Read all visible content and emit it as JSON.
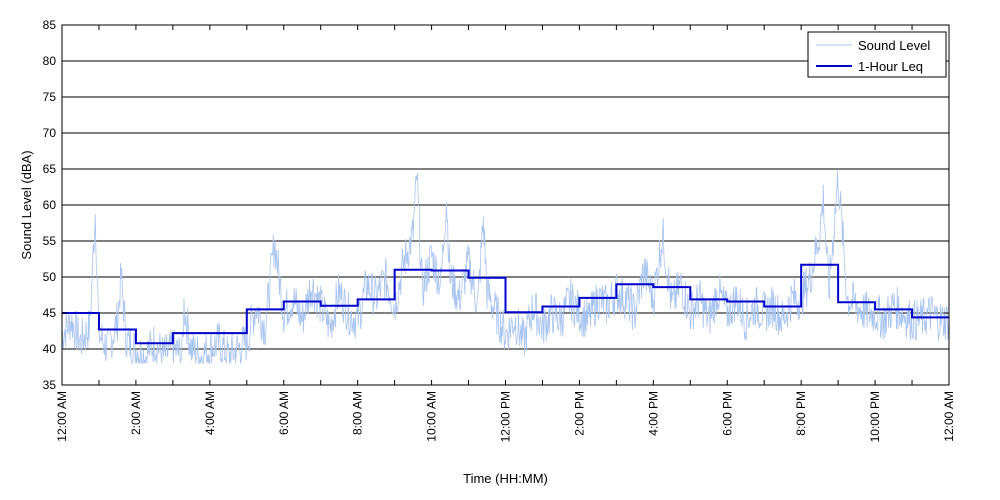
{
  "chart_data": {
    "type": "line",
    "xlabel": "Time (HH:MM)",
    "ylabel": "Sound Level (dBA)",
    "x_range_hours": [
      0,
      24
    ],
    "ylim": [
      35,
      85
    ],
    "y_ticks": [
      35,
      40,
      45,
      50,
      55,
      60,
      65,
      70,
      75,
      80,
      85
    ],
    "x_ticks": [
      {
        "hour": 0,
        "label": "12:00 AM"
      },
      {
        "hour": 2,
        "label": "2:00 AM"
      },
      {
        "hour": 4,
        "label": "4:00 AM"
      },
      {
        "hour": 6,
        "label": "6:00 AM"
      },
      {
        "hour": 8,
        "label": "8:00 AM"
      },
      {
        "hour": 10,
        "label": "10:00 AM"
      },
      {
        "hour": 12,
        "label": "12:00 PM"
      },
      {
        "hour": 14,
        "label": "2:00 PM"
      },
      {
        "hour": 16,
        "label": "4:00 PM"
      },
      {
        "hour": 18,
        "label": "6:00 PM"
      },
      {
        "hour": 20,
        "label": "8:00 PM"
      },
      {
        "hour": 22,
        "label": "10:00 PM"
      },
      {
        "hour": 24,
        "label": "12:00 AM"
      }
    ],
    "grid": "horizontal",
    "legend_position": "top-right",
    "series": [
      {
        "name": "Sound Level",
        "color": "#a8c4f0",
        "style": "thin-line",
        "x": [
          0,
          0.25,
          0.5,
          0.75,
          0.9,
          1.0,
          1.25,
          1.5,
          1.6,
          1.75,
          2.0,
          2.25,
          2.5,
          2.75,
          3.0,
          3.25,
          3.3,
          3.5,
          3.75,
          4.0,
          4.25,
          4.5,
          4.75,
          5.0,
          5.25,
          5.5,
          5.75,
          6.0,
          6.25,
          6.5,
          6.75,
          7.0,
          7.25,
          7.5,
          7.75,
          8.0,
          8.25,
          8.5,
          8.75,
          9.0,
          9.25,
          9.5,
          9.6,
          9.75,
          10.0,
          10.25,
          10.4,
          10.5,
          10.75,
          11.0,
          11.25,
          11.4,
          11.5,
          11.75,
          12.0,
          12.25,
          12.5,
          12.75,
          13.0,
          13.25,
          13.5,
          13.75,
          14.0,
          14.25,
          14.5,
          14.75,
          15.0,
          15.25,
          15.5,
          15.75,
          16.0,
          16.25,
          16.5,
          16.75,
          17.0,
          17.25,
          17.5,
          17.75,
          18.0,
          18.25,
          18.5,
          18.75,
          19.0,
          19.25,
          19.5,
          19.75,
          20.0,
          20.25,
          20.5,
          20.6,
          20.75,
          21.0,
          21.25,
          21.5,
          21.75,
          22.0,
          22.25,
          22.5,
          22.75,
          23.0,
          23.25,
          23.5,
          23.75,
          24.0
        ],
        "y": [
          42,
          44,
          41,
          43,
          59,
          42,
          40,
          44,
          50,
          41,
          40,
          39,
          41,
          39,
          40,
          39,
          46,
          40,
          39,
          40,
          41,
          39,
          40,
          41,
          46,
          43,
          55,
          45,
          47,
          44,
          49,
          46,
          43,
          48,
          45,
          44,
          49,
          47,
          50,
          46,
          52,
          56,
          64,
          48,
          53,
          49,
          61,
          50,
          47,
          52,
          46,
          58,
          48,
          45,
          42,
          44,
          41,
          46,
          43,
          45,
          44,
          47,
          45,
          44,
          47,
          46,
          48,
          47,
          45,
          51,
          47,
          56,
          46,
          49,
          45,
          47,
          44,
          48,
          45,
          47,
          44,
          46,
          45,
          46,
          44,
          47,
          47,
          50,
          56,
          61,
          48,
          64,
          47,
          46,
          45,
          45,
          44,
          46,
          45,
          44,
          44,
          45,
          44,
          44
        ]
      },
      {
        "name": "1-Hour Leq",
        "color": "#0000cc",
        "style": "step",
        "hours": [
          0,
          1,
          2,
          3,
          4,
          5,
          6,
          7,
          8,
          9,
          10,
          11,
          12,
          13,
          14,
          15,
          16,
          17,
          18,
          19,
          20,
          21,
          22,
          23
        ],
        "values": [
          45.0,
          42.7,
          40.8,
          42.2,
          42.2,
          45.5,
          46.6,
          46.0,
          46.9,
          51.0,
          50.9,
          49.9,
          45.1,
          45.9,
          47.1,
          49.0,
          48.6,
          46.9,
          46.6,
          45.9,
          51.7,
          46.5,
          45.5,
          44.4
        ]
      }
    ]
  }
}
